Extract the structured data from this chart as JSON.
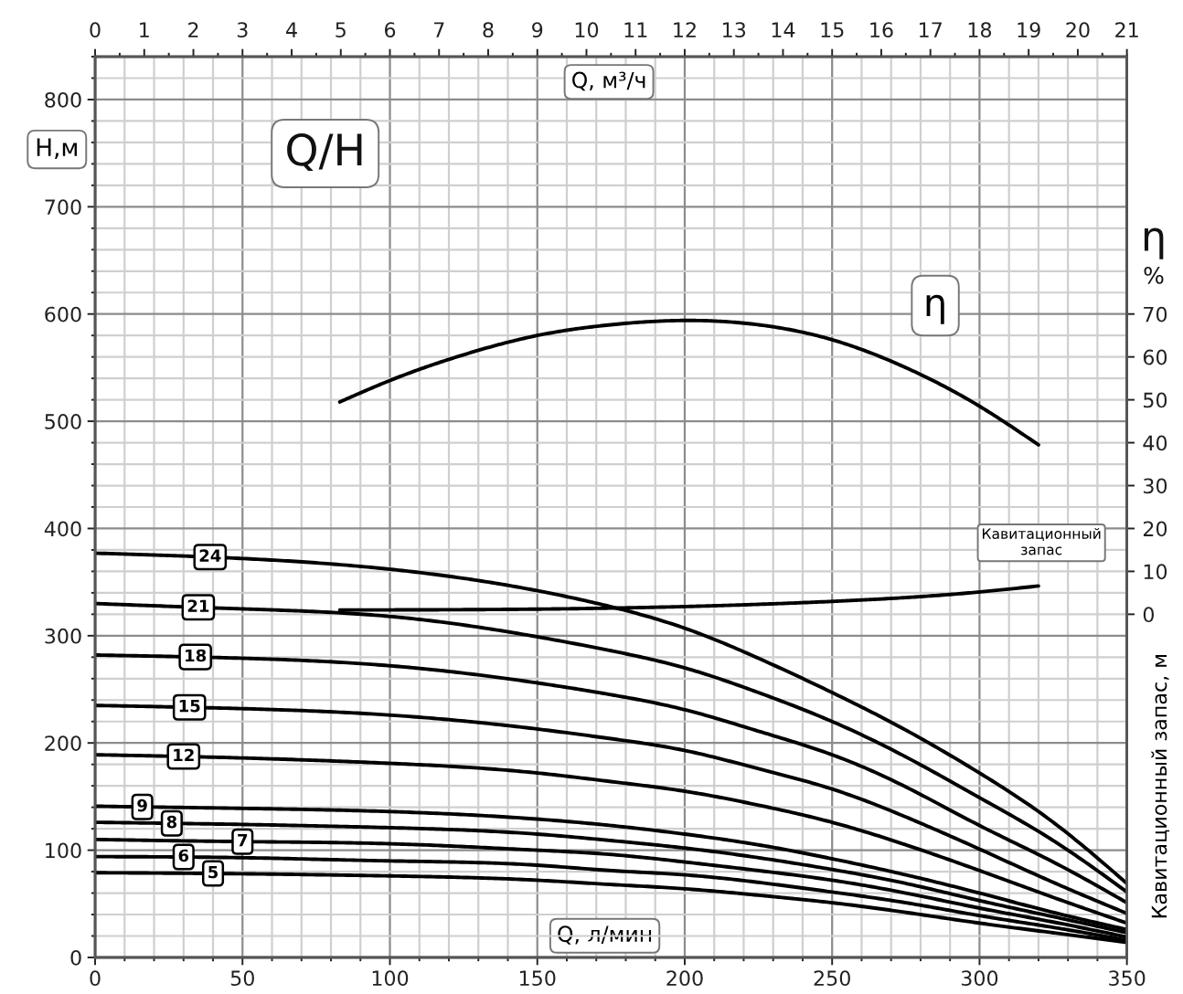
{
  "chart_data": {
    "type": "line",
    "annotations": [
      "Q/H",
      "η",
      "%"
    ],
    "xlabel": "Q, л/мин",
    "x2label": "Q, м³/ч",
    "ylabel": "H,м",
    "y2label": "Кавитационный запас, м",
    "x": [
      0,
      50,
      100,
      150,
      175,
      200,
      225,
      250,
      275,
      300,
      325,
      350
    ],
    "series": [
      {
        "name": "5",
        "color": "#000000",
        "values": [
          79,
          78,
          76,
          72,
          68,
          64,
          58,
          51,
          42,
          32,
          23,
          14
        ]
      },
      {
        "name": "6",
        "color": "#000000",
        "values": [
          94,
          93,
          90,
          86,
          81,
          77,
          70,
          61,
          51,
          39,
          28,
          16
        ]
      },
      {
        "name": "7",
        "color": "#000000",
        "values": [
          110,
          108,
          106,
          100,
          96,
          89,
          81,
          72,
          60,
          46,
          33,
          19
        ]
      },
      {
        "name": "8",
        "color": "#000000",
        "values": [
          126,
          124,
          121,
          115,
          109,
          102,
          93,
          82,
          69,
          53,
          38,
          23
        ]
      },
      {
        "name": "9",
        "color": "#000000",
        "values": [
          141,
          139,
          136,
          129,
          123,
          115,
          105,
          92,
          77,
          60,
          42,
          26
        ]
      },
      {
        "name": "12",
        "color": "#000000",
        "values": [
          189,
          186,
          181,
          172,
          164,
          155,
          142,
          126,
          105,
          81,
          56,
          32
        ]
      },
      {
        "name": "15",
        "color": "#000000",
        "values": [
          235,
          232,
          226,
          213,
          204,
          193,
          176,
          157,
          131,
          101,
          70,
          41
        ]
      },
      {
        "name": "18",
        "color": "#000000",
        "values": [
          282,
          279,
          272,
          256,
          245,
          231,
          211,
          189,
          159,
          123,
          89,
          51
        ]
      },
      {
        "name": "21",
        "color": "#000000",
        "values": [
          330,
          325,
          318,
          299,
          286,
          270,
          247,
          220,
          187,
          149,
          109,
          61
        ]
      },
      {
        "name": "24",
        "color": "#000000",
        "values": [
          377,
          372,
          362,
          342,
          327,
          307,
          279,
          247,
          212,
          172,
          126,
          69
        ]
      },
      {
        "name": "η",
        "color": "#000000",
        "axis": "y2",
        "x": [
          83,
          100,
          125,
          150,
          175,
          200,
          225,
          250,
          275,
          300,
          320
        ],
        "values": [
          49.5,
          54.5,
          60.5,
          65,
          67.5,
          68.5,
          67.5,
          64,
          57.5,
          48.5,
          39.5
        ]
      },
      {
        "name": "Кавитационный\nзапас",
        "color": "#000000",
        "axis": "y2",
        "x": [
          83,
          150,
          200,
          250,
          300,
          320
        ],
        "values": [
          1,
          1.2,
          1.8,
          3,
          5.2,
          6.6
        ]
      }
    ],
    "xlim": [
      0,
      350
    ],
    "xticks": [
      0,
      {
        "value": 10,
        "label": null
      },
      {
        "value": 20,
        "label": null
      },
      {
        "value": 30,
        "label": null
      },
      {
        "value": 40,
        "label": null
      },
      50,
      {
        "value": 60,
        "label": null
      },
      {
        "value": 70,
        "label": null
      },
      {
        "value": 80,
        "label": null
      },
      {
        "value": 90,
        "label": null
      },
      100,
      {
        "value": 110,
        "label": null
      },
      {
        "value": 120,
        "label": null
      },
      {
        "value": 130,
        "label": null
      },
      {
        "value": 140,
        "label": null
      },
      150,
      {
        "value": 160,
        "label": null
      },
      {
        "value": 170,
        "label": null
      },
      {
        "value": 180,
        "label": null
      },
      {
        "value": 190,
        "label": null
      },
      200,
      {
        "value": 210,
        "label": null
      },
      {
        "value": 220,
        "label": null
      },
      {
        "value": 230,
        "label": null
      },
      {
        "value": 240,
        "label": null
      },
      250,
      {
        "value": 260,
        "label": null
      },
      {
        "value": 270,
        "label": null
      },
      {
        "value": 280,
        "label": null
      },
      {
        "value": 290,
        "label": null
      },
      300,
      {
        "value": 310,
        "label": null
      },
      {
        "value": 320,
        "label": null
      },
      {
        "value": 330,
        "label": null
      },
      {
        "value": 340,
        "label": null
      },
      350
    ],
    "ylim": [
      0,
      840
    ],
    "yticks": [
      0,
      {
        "value": 20,
        "label": null
      },
      {
        "value": 40,
        "label": null
      },
      {
        "value": 60,
        "label": null
      },
      {
        "value": 80,
        "label": null
      },
      100,
      {
        "value": 120,
        "label": null
      },
      {
        "value": 140,
        "label": null
      },
      {
        "value": 160,
        "label": null
      },
      {
        "value": 180,
        "label": null
      },
      200,
      {
        "value": 220,
        "label": null
      },
      {
        "value": 240,
        "label": null
      },
      {
        "value": 260,
        "label": null
      },
      {
        "value": 280,
        "label": null
      },
      300,
      {
        "value": 320,
        "label": null
      },
      {
        "value": 340,
        "label": null
      },
      {
        "value": 360,
        "label": null
      },
      {
        "value": 380,
        "label": null
      },
      400,
      {
        "value": 420,
        "label": null
      },
      {
        "value": 440,
        "label": null
      },
      {
        "value": 460,
        "label": null
      },
      {
        "value": 480,
        "label": null
      },
      500,
      {
        "value": 520,
        "label": null
      },
      {
        "value": 540,
        "label": null
      },
      {
        "value": 560,
        "label": null
      },
      {
        "value": 580,
        "label": null
      },
      600,
      {
        "value": 620,
        "label": null
      },
      {
        "value": 640,
        "label": null
      },
      {
        "value": 660,
        "label": null
      },
      {
        "value": 680,
        "label": null
      },
      700,
      {
        "value": 720,
        "label": null
      },
      {
        "value": 740,
        "label": null
      },
      {
        "value": 760,
        "label": null
      },
      {
        "value": 780,
        "label": null
      },
      800,
      {
        "value": 820,
        "label": null
      },
      {
        "value": 840,
        "label": null
      }
    ],
    "x2lim": [
      0,
      21
    ],
    "x2ticks": [
      0,
      {
        "value": 0.5,
        "label": null
      },
      1,
      {
        "value": 1.5,
        "label": null
      },
      2,
      {
        "value": 2.5,
        "label": null
      },
      3,
      {
        "value": 3.5,
        "label": null
      },
      4,
      {
        "value": 4.5,
        "label": null
      },
      5,
      {
        "value": 5.5,
        "label": null
      },
      6,
      {
        "value": 6.5,
        "label": null
      },
      7,
      {
        "value": 7.5,
        "label": null
      },
      8,
      {
        "value": 8.5,
        "label": null
      },
      9,
      {
        "value": 9.5,
        "label": null
      },
      10,
      {
        "value": 10.5,
        "label": null
      },
      11,
      {
        "value": 11.5,
        "label": null
      },
      12,
      {
        "value": 12.5,
        "label": null
      },
      13,
      {
        "value": 13.5,
        "label": null
      },
      14,
      {
        "value": 14.5,
        "label": null
      },
      15,
      {
        "value": 15.5,
        "label": null
      },
      16,
      {
        "value": 16.5,
        "label": null
      },
      17,
      {
        "value": 17.5,
        "label": null
      },
      18,
      {
        "value": 18.5,
        "label": null
      },
      19,
      {
        "value": 19.5,
        "label": null
      },
      20,
      {
        "value": 20.5,
        "label": null
      },
      21
    ],
    "y2lim": [
      -80,
      130
    ],
    "y2ticks": [
      0,
      10,
      20,
      30,
      40,
      50,
      60,
      70
    ],
    "grid": true
  }
}
